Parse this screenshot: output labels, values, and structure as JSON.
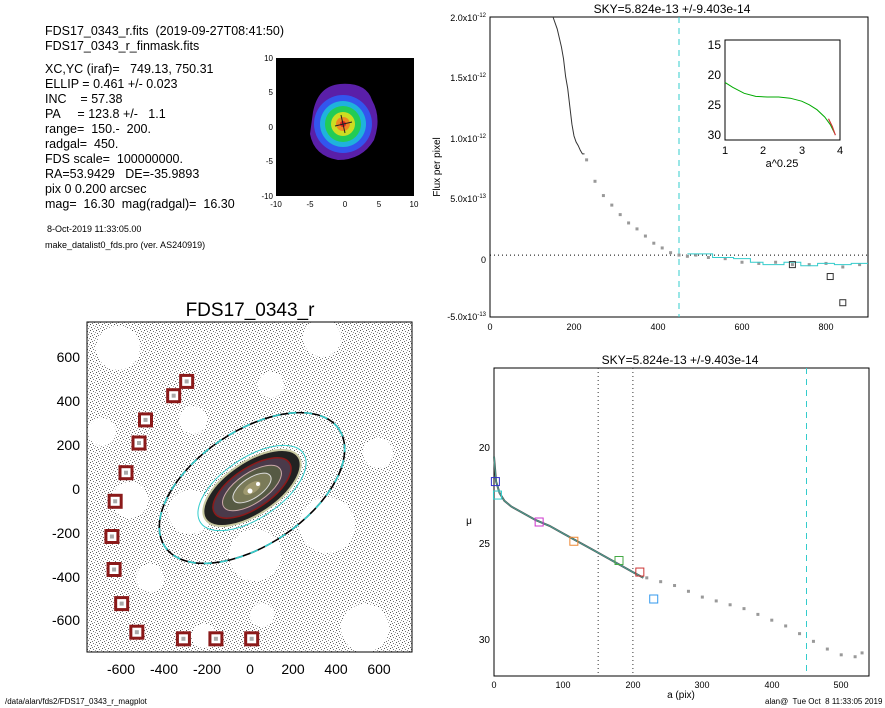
{
  "header": {
    "lines": [
      "FDS17_0343_r.fits  (2019-09-27T08:41:50)",
      "FDS17_0343_r_finmask.fits",
      "XC,YC (iraf)=   749.13, 750.31",
      "ELLIP = 0.461 +/- 0.023",
      "INC    = 57.38",
      "PA     = 123.8 +/-   1.1",
      "range=  150.-  200.",
      "radgal=  450.",
      "FDS scale=  100000000.",
      "RA=53.9429   DE=-35.9893",
      "pix 0 0.200 arcsec",
      "mag=  16.30  mag(radgal)=  16.30"
    ],
    "date": "8-Oct-2019 11:33:05.00",
    "program": "make_datalist0_fds.pro (ver. AS240919)"
  },
  "footer": {
    "path": "/data/alan/fds2/FDS17_0343_r_magplot",
    "stamp": "alan@  Tue Oct  8 11:33:05 2019"
  },
  "colors": {
    "cyan": "#33cccc",
    "gray": "#999999",
    "maroon": "#8b1a1a",
    "sky": "#000000"
  },
  "chart_data": [
    {
      "id": "thumbnail",
      "type": "heatmap",
      "xlim": [
        -10,
        10
      ],
      "ylim": [
        -10,
        10
      ],
      "xticks": [
        "-10",
        "-5",
        "0",
        "5",
        "10"
      ],
      "yticks": [
        "-10",
        "-5",
        "0",
        "5",
        "10"
      ]
    },
    {
      "id": "image",
      "type": "scatter",
      "title": "FDS17_0343_r",
      "xlim": [
        -750,
        750
      ],
      "ylim": [
        -750,
        750
      ],
      "xticks": [
        "-600",
        "-400",
        "-200",
        "0",
        "200",
        "400",
        "600"
      ],
      "yticks": [
        "-600",
        "-400",
        "-200",
        "0",
        "200",
        "400",
        "600"
      ],
      "masked_stars": {
        "x": [
          -290,
          -350,
          -480,
          -510,
          -570,
          -620,
          -635,
          -625,
          -590,
          -520,
          -305,
          -155,
          10
        ],
        "y": [
          480,
          415,
          305,
          200,
          65,
          -65,
          -225,
          -375,
          -530,
          -660,
          -690,
          -690,
          -690
        ]
      }
    },
    {
      "id": "flux",
      "type": "line",
      "title": "SKY=5.824e-13 +/-9.403e-14",
      "xlabel": "",
      "ylabel": "Flux per pixel",
      "xlim": [
        0,
        900
      ],
      "ylim": [
        -5.2e-13,
        2e-12
      ],
      "xticks": [
        "0",
        "200",
        "400",
        "600",
        "800"
      ],
      "yticks": [
        "-5.0x10-13",
        "0",
        "5.0x10-13",
        "1.0x10-12",
        "1.5x10-12",
        "2.0x10-12"
      ],
      "profile": {
        "x": [
          150,
          160,
          170,
          175,
          180,
          185,
          190,
          195,
          200,
          205,
          210,
          215,
          220,
          225
        ],
        "y": [
          2e-12,
          1.9e-12,
          1.75e-12,
          1.65e-12,
          1.5e-12,
          1.4e-12,
          1.25e-12,
          1.1e-12,
          1e-12,
          9.5e-13,
          9.2e-13,
          8.8e-13,
          8.5e-13,
          8.5e-13
        ]
      },
      "points": {
        "x": [
          230,
          250,
          270,
          290,
          310,
          330,
          350,
          370,
          390,
          410,
          430,
          450,
          470,
          490,
          520,
          560,
          600,
          640,
          680,
          720,
          760,
          800,
          840,
          880
        ],
        "y": [
          8e-13,
          6.2e-13,
          5e-13,
          4.2e-13,
          3.4e-13,
          2.7e-13,
          2.2e-13,
          1.6e-13,
          1e-13,
          6e-14,
          2e-14,
          0.0,
          -1e-14,
          0.0,
          -2e-14,
          -3e-14,
          -6e-14,
          -7e-14,
          -6e-14,
          -8e-14,
          -8e-14,
          -7e-14,
          -1e-13,
          -8e-14
        ]
      },
      "outliers": {
        "x": [
          720,
          810,
          840
        ],
        "y": [
          -8e-14,
          -1.8e-13,
          -4e-13
        ]
      },
      "sky_step": {
        "x": [
          470,
          530,
          580,
          620,
          650,
          700,
          740,
          780,
          820,
          860,
          900
        ],
        "y": [
          1e-14,
          -2e-14,
          -3e-14,
          -6e-14,
          -8e-14,
          -6e-14,
          -9e-14,
          -7e-14,
          -8e-14,
          -7e-14,
          -7e-14
        ]
      },
      "vline": 450
    },
    {
      "id": "inset",
      "type": "line",
      "xlabel": "a^0.25",
      "xlim": [
        1,
        4
      ],
      "ylim": [
        31,
        14.5
      ],
      "xticks": [
        "1",
        "2",
        "3",
        "4"
      ],
      "yticks": [
        "15",
        "20",
        "25",
        "30"
      ],
      "series": [
        {
          "color": "#00aa00",
          "x": [
            1.0,
            1.2,
            1.5,
            1.8,
            2.1,
            2.4,
            2.7,
            3.0,
            3.2,
            3.4,
            3.6,
            3.75,
            3.85
          ],
          "y": [
            21.5,
            22.3,
            23.3,
            23.8,
            23.9,
            23.9,
            24.1,
            24.6,
            25.2,
            26.0,
            27.2,
            28.5,
            29.8
          ]
        }
      ]
    },
    {
      "id": "mu",
      "type": "line",
      "title": "SKY=5.824e-13 +/-9.403e-14",
      "xlabel": "a (pix)",
      "ylabel": "μ",
      "xlim": [
        0,
        540
      ],
      "ylim": [
        32,
        16
      ],
      "xticks": [
        "0",
        "100",
        "200",
        "300",
        "400",
        "500"
      ],
      "yticks": [
        "20",
        "25",
        "30"
      ],
      "profile": {
        "x": [
          0,
          3,
          8,
          15,
          25,
          40,
          60,
          80,
          100,
          120,
          140,
          160,
          180,
          200,
          215
        ],
        "y": [
          20.6,
          21.9,
          22.5,
          22.9,
          23.2,
          23.5,
          23.9,
          24.2,
          24.6,
          25.0,
          25.4,
          25.8,
          26.2,
          26.6,
          26.9
        ]
      },
      "points": {
        "x": [
          220,
          240,
          260,
          280,
          300,
          320,
          340,
          360,
          380,
          400,
          420,
          440,
          460,
          480,
          500,
          520,
          530
        ],
        "y": [
          26.9,
          27.1,
          27.3,
          27.6,
          27.9,
          28.1,
          28.3,
          28.5,
          28.8,
          29.1,
          29.4,
          29.8,
          30.2,
          30.6,
          30.9,
          31.0,
          30.8
        ]
      },
      "markers": {
        "x": [
          2,
          5,
          65,
          115,
          180,
          210,
          230
        ],
        "y": [
          21.9,
          22.6,
          24.0,
          25.0,
          26.0,
          26.6,
          28.0
        ],
        "colors": [
          "#3333cc",
          "#33cccc",
          "#cc33cc",
          "#ee8833",
          "#44aa44",
          "#cc3333",
          "#3399ee"
        ]
      },
      "vlines_dotted": [
        150,
        200
      ],
      "vline_dashed": 450
    }
  ]
}
